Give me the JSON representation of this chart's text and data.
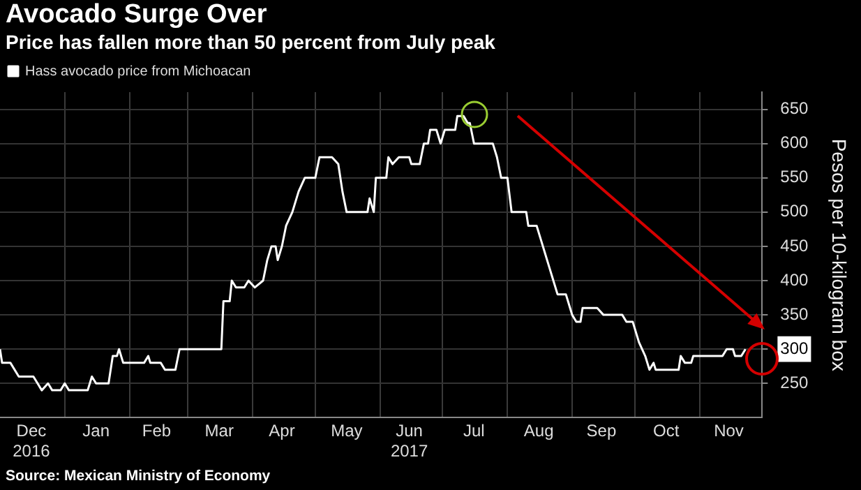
{
  "chart_data": {
    "type": "line",
    "title": "Avocado Surge Over",
    "subtitle": "Price has fallen more than 50 percent from July peak",
    "ylabel": "Pesos per 10-kilogram box",
    "x": [
      "2016-12-01",
      "2016-12-02",
      "2016-12-06",
      "2016-12-10",
      "2016-12-17",
      "2016-12-19",
      "2016-12-21",
      "2016-12-24",
      "2016-12-26",
      "2016-12-30",
      "2017-01-01",
      "2017-01-03",
      "2017-01-12",
      "2017-01-14",
      "2017-01-16",
      "2017-01-22",
      "2017-01-24",
      "2017-01-26",
      "2017-01-27",
      "2017-01-29",
      "2017-02-08",
      "2017-02-10",
      "2017-02-11",
      "2017-02-16",
      "2017-02-18",
      "2017-02-23",
      "2017-02-25",
      "2017-03-17",
      "2017-03-18",
      "2017-03-21",
      "2017-03-22",
      "2017-03-24",
      "2017-03-28",
      "2017-03-30",
      "2017-04-02",
      "2017-04-06",
      "2017-04-08",
      "2017-04-10",
      "2017-04-12",
      "2017-04-13",
      "2017-04-15",
      "2017-04-17",
      "2017-04-20",
      "2017-04-23",
      "2017-04-26",
      "2017-05-01",
      "2017-05-03",
      "2017-05-09",
      "2017-05-12",
      "2017-05-14",
      "2017-05-16",
      "2017-05-26",
      "2017-05-27",
      "2017-05-29",
      "2017-05-30",
      "2017-06-04",
      "2017-06-05",
      "2017-06-07",
      "2017-06-10",
      "2017-06-15",
      "2017-06-16",
      "2017-06-20",
      "2017-06-22",
      "2017-06-24",
      "2017-06-25",
      "2017-06-28",
      "2017-06-30",
      "2017-07-02",
      "2017-07-07",
      "2017-07-08",
      "2017-07-11",
      "2017-07-13",
      "2017-07-14",
      "2017-07-16",
      "2017-07-25",
      "2017-07-27",
      "2017-07-29",
      "2017-08-01",
      "2017-08-03",
      "2017-08-10",
      "2017-08-11",
      "2017-08-15",
      "2017-08-17",
      "2017-08-19",
      "2017-08-21",
      "2017-08-23",
      "2017-08-25",
      "2017-08-29",
      "2017-08-31",
      "2017-09-01",
      "2017-09-03",
      "2017-09-05",
      "2017-09-06",
      "2017-09-13",
      "2017-09-16",
      "2017-09-25",
      "2017-09-27",
      "2017-09-30",
      "2017-10-03",
      "2017-10-06",
      "2017-10-08",
      "2017-10-10",
      "2017-10-11",
      "2017-10-22",
      "2017-10-23",
      "2017-10-25",
      "2017-10-28",
      "2017-10-29",
      "2017-11-12",
      "2017-11-14",
      "2017-11-17",
      "2017-11-18",
      "2017-11-21",
      "2017-11-23"
    ],
    "series": [
      {
        "name": "Hass avocado price from Michoacan",
        "color": "#ffffff",
        "values": [
          300,
          280,
          280,
          260,
          260,
          250,
          240,
          250,
          240,
          240,
          250,
          240,
          240,
          260,
          250,
          250,
          290,
          290,
          300,
          280,
          280,
          290,
          280,
          280,
          270,
          270,
          300,
          300,
          370,
          370,
          400,
          390,
          390,
          400,
          390,
          400,
          430,
          450,
          450,
          430,
          450,
          480,
          500,
          530,
          550,
          550,
          580,
          580,
          570,
          530,
          500,
          500,
          520,
          500,
          550,
          550,
          580,
          570,
          580,
          580,
          570,
          570,
          600,
          600,
          620,
          620,
          600,
          620,
          620,
          640,
          640,
          630,
          630,
          600,
          600,
          580,
          550,
          550,
          500,
          500,
          480,
          480,
          460,
          440,
          420,
          400,
          380,
          380,
          360,
          350,
          340,
          340,
          360,
          360,
          350,
          350,
          340,
          340,
          310,
          290,
          270,
          280,
          270,
          270,
          290,
          280,
          280,
          290,
          290,
          300,
          300,
          290,
          290,
          300
        ]
      }
    ],
    "xlim": [
      "2016-12-01",
      "2017-12-01"
    ],
    "xticks": [
      {
        "value": "2016-12-16",
        "label": "Dec\n2016"
      },
      {
        "value": "2017-01-01",
        "label": null
      },
      {
        "value": "2017-01-16",
        "label": "Jan"
      },
      {
        "value": "2017-02-01",
        "label": null
      },
      {
        "value": "2017-02-14",
        "label": "Feb"
      },
      {
        "value": "2017-03-01",
        "label": null
      },
      {
        "value": "2017-03-16",
        "label": "Mar"
      },
      {
        "value": "2017-04-01",
        "label": null
      },
      {
        "value": "2017-04-15",
        "label": "Apr"
      },
      {
        "value": "2017-05-01",
        "label": null
      },
      {
        "value": "2017-05-16",
        "label": "May"
      },
      {
        "value": "2017-06-01",
        "label": null
      },
      {
        "value": "2017-06-15",
        "label": "Jun\n2017"
      },
      {
        "value": "2017-07-01",
        "label": null
      },
      {
        "value": "2017-07-16",
        "label": "Jul"
      },
      {
        "value": "2017-08-01",
        "label": null
      },
      {
        "value": "2017-08-16",
        "label": "Aug"
      },
      {
        "value": "2017-09-01",
        "label": null
      },
      {
        "value": "2017-09-15",
        "label": "Sep"
      },
      {
        "value": "2017-10-01",
        "label": null
      },
      {
        "value": "2017-10-16",
        "label": "Oct"
      },
      {
        "value": "2017-11-01",
        "label": null
      },
      {
        "value": "2017-11-15",
        "label": "Nov"
      }
    ],
    "ylim": [
      200,
      675
    ],
    "yticks": [
      250,
      300,
      350,
      400,
      450,
      500,
      550,
      600,
      650
    ],
    "grid": true,
    "legend": "top left",
    "marker": "none",
    "line_style": "solid",
    "annotations": [
      "Source: Mexican Ministry of Economy"
    ]
  }
}
